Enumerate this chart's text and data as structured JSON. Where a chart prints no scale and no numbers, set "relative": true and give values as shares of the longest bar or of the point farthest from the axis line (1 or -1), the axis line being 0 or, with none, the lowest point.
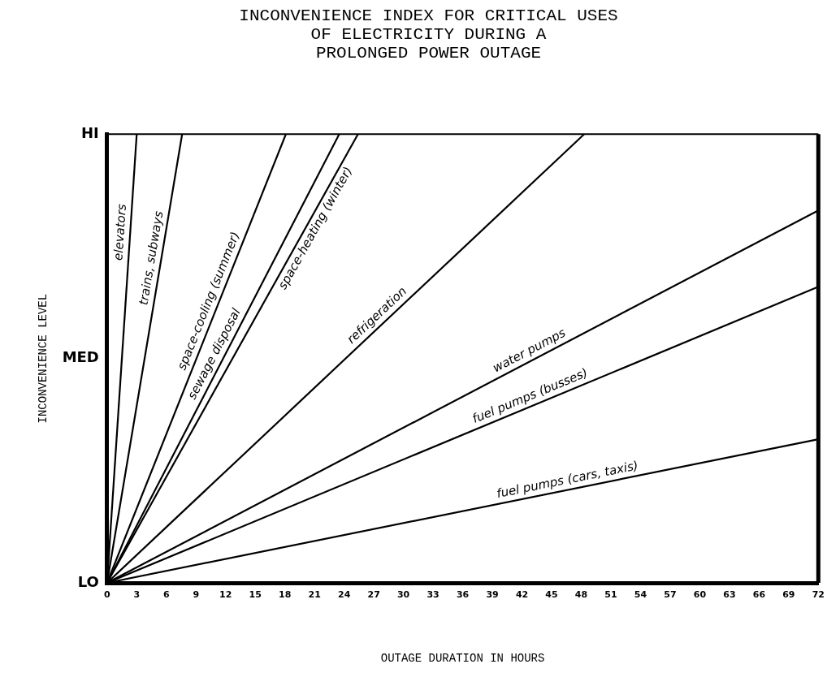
{
  "chart_data": {
    "type": "line",
    "title": "INCONVENIENCE INDEX FOR CRITICAL USES\nOF ELECTRICITY DURING A\nPROLONGED POWER OUTAGE",
    "xlabel": "OUTAGE DURATION IN HOURS",
    "ylabel": "INCONVENIENCE LEVEL",
    "xlim": [
      0,
      72
    ],
    "xticks": [
      0,
      3,
      6,
      9,
      12,
      15,
      18,
      21,
      24,
      27,
      30,
      33,
      36,
      39,
      42,
      45,
      48,
      51,
      54,
      57,
      60,
      63,
      66,
      69,
      72
    ],
    "relative": true,
    "annotations": [
      "LO",
      "MED",
      "HI"
    ],
    "grid": false,
    "legend": false,
    "marker": "none",
    "line_style": "solid",
    "series": [
      {
        "name": "elevators",
        "color": "#000000",
        "x": [
          0,
          3
        ],
        "values": [
          0,
          1
        ]
      },
      {
        "name": "trains, subways",
        "color": "#000000",
        "x": [
          0,
          7.6
        ],
        "values": [
          0,
          1
        ]
      },
      {
        "name": "space-cooling (summer)",
        "color": "#000000",
        "x": [
          0,
          18.1
        ],
        "values": [
          0,
          1
        ]
      },
      {
        "name": "sewage disposal",
        "color": "#000000",
        "x": [
          0,
          23.5
        ],
        "values": [
          0,
          1
        ]
      },
      {
        "name": "space-heating (winter)",
        "color": "#000000",
        "x": [
          0,
          25.4
        ],
        "values": [
          0,
          1
        ]
      },
      {
        "name": "refrigeration",
        "color": "#000000",
        "x": [
          0,
          48.3
        ],
        "values": [
          0,
          1
        ]
      },
      {
        "name": "water pumps",
        "color": "#000000",
        "x": [
          0,
          72
        ],
        "values": [
          0,
          0.83
        ]
      },
      {
        "name": "fuel pumps (busses)",
        "color": "#000000",
        "x": [
          0,
          72
        ],
        "values": [
          0,
          0.66
        ]
      },
      {
        "name": "fuel pumps (cars, taxis)",
        "color": "#000000",
        "x": [
          0,
          72
        ],
        "values": [
          0,
          0.32
        ]
      }
    ]
  }
}
